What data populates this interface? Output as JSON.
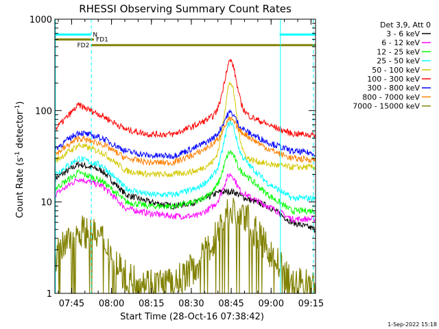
{
  "chart_data": {
    "type": "line",
    "title": "RHESSI Observing Summary Count Rates",
    "xlabel": "Start Time (28-Oct-16 07:38:42)",
    "ylabel_main": "Count Rate (s",
    "ylabel_sup1": "-1",
    "ylabel_mid": " detector",
    "ylabel_sup2": "-1",
    "ylabel_end": ")",
    "y_scale": "log",
    "ylim": [
      1,
      1000
    ],
    "xlim_minutes": [
      0,
      98
    ],
    "x_ticks": [
      {
        "label": "07:45",
        "t": 6.3
      },
      {
        "label": "08:00",
        "t": 21.3
      },
      {
        "label": "08:15",
        "t": 36.3
      },
      {
        "label": "08:30",
        "t": 51.3
      },
      {
        "label": "08:45",
        "t": 66.3
      },
      {
        "label": "09:00",
        "t": 81.3
      },
      {
        "label": "09:15",
        "t": 96.3
      }
    ],
    "y_ticks": [
      {
        "label": "1",
        "v": 1
      },
      {
        "label": "10",
        "v": 10
      },
      {
        "label": "100",
        "v": 100
      },
      {
        "label": "1000",
        "v": 1000
      }
    ],
    "legend_header": "Det 3,9, Att 0",
    "legend_position": "right",
    "series": [
      {
        "name": "3 - 6 keV",
        "color": "#000000",
        "base": [
          18,
          26,
          22,
          12,
          10,
          9,
          10,
          13,
          11,
          9,
          6,
          5
        ],
        "peak": 13
      },
      {
        "name": "6 - 12 keV",
        "color": "#ff00ff",
        "base": [
          12,
          18,
          15,
          8.5,
          7.5,
          7,
          7,
          10,
          12,
          9,
          6.5,
          6.5
        ],
        "peak": 20
      },
      {
        "name": "12 - 25 keV",
        "color": "#00ff00",
        "base": [
          14,
          21,
          17,
          10,
          9,
          9,
          10,
          15,
          20,
          12,
          8,
          8
        ],
        "peak": 35
      },
      {
        "name": "25 - 50 keV",
        "color": "#00ffff",
        "base": [
          20,
          30,
          25,
          14,
          12,
          12,
          14,
          22,
          28,
          16,
          11,
          11
        ],
        "peak": 75
      },
      {
        "name": "50 - 100 keV",
        "color": "#d4c800",
        "base": [
          28,
          42,
          35,
          22,
          20,
          20,
          22,
          30,
          30,
          26,
          24,
          24
        ],
        "peak": 200
      },
      {
        "name": "100 - 300 keV",
        "color": "#ff0000",
        "base": [
          62,
          115,
          88,
          62,
          55,
          55,
          70,
          95,
          92,
          70,
          56,
          54
        ],
        "peak": 350
      },
      {
        "name": "300 - 800 keV",
        "color": "#0000ff",
        "base": [
          38,
          58,
          50,
          36,
          32,
          32,
          40,
          55,
          60,
          45,
          36,
          34
        ],
        "peak": 95
      },
      {
        "name": "800 - 7000 keV",
        "color": "#ff8000",
        "base": [
          33,
          50,
          43,
          30,
          27,
          27,
          34,
          48,
          55,
          38,
          30,
          29
        ],
        "peak": 80
      },
      {
        "name": "7000 - 15000 keV",
        "color": "#808000",
        "base": [
          2.5,
          5,
          4,
          1.5,
          1.3,
          1.3,
          2,
          5,
          7,
          3,
          1.3,
          1.3
        ],
        "peak": 8
      }
    ],
    "flags": [
      {
        "label": "N",
        "color": "#00ffff",
        "t0": 0,
        "t1": 13.5,
        "v": 680
      },
      {
        "label": "",
        "color": "#00ffff",
        "t0": 84.5,
        "t1": 98,
        "v": 680
      },
      {
        "label": "FD1",
        "color": "#808000",
        "t0": 0,
        "t1": 14.7,
        "v": 600
      },
      {
        "label": "FD2",
        "color": "#808000",
        "t0": 13.5,
        "t1": 98,
        "v": 520
      }
    ],
    "vlines_solid_t": [
      0.2,
      84.8
    ],
    "vlines_dashed_t": [
      13.7,
      97.2
    ]
  },
  "footer_date": "1-Sep-2022 15:18"
}
